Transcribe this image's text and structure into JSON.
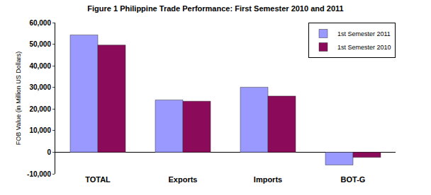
{
  "chart_data": {
    "type": "bar",
    "title": "Figure 1 Philippine Trade Performance: First Semester 2010 and 2011",
    "y_label": "FOB Value (in Million US Dollars)",
    "categories": [
      "TOTAL",
      "Exports",
      "Imports",
      "BOT-G"
    ],
    "series": [
      {
        "name": "1st Semester 2011",
        "color": "#9999ff",
        "values": [
          54300,
          24200,
          30100,
          -5900
        ]
      },
      {
        "name": "1st Semester 2010",
        "color": "#8b0a5a",
        "values": [
          49600,
          23600,
          26000,
          -2400
        ]
      }
    ],
    "ylim": [
      -10000,
      60000
    ],
    "yticks": [
      {
        "value": -10000,
        "label": "-10,000"
      },
      0,
      {
        "value": 10000,
        "label": "10,000"
      },
      {
        "value": 20000,
        "label": "20,000"
      },
      {
        "value": 30000,
        "label": "30,000"
      },
      {
        "value": 40000,
        "label": "40,000"
      },
      {
        "value": 50000,
        "label": "50,000"
      },
      {
        "value": 60000,
        "label": "60,000"
      }
    ],
    "grid": false,
    "legend": "upper right"
  }
}
